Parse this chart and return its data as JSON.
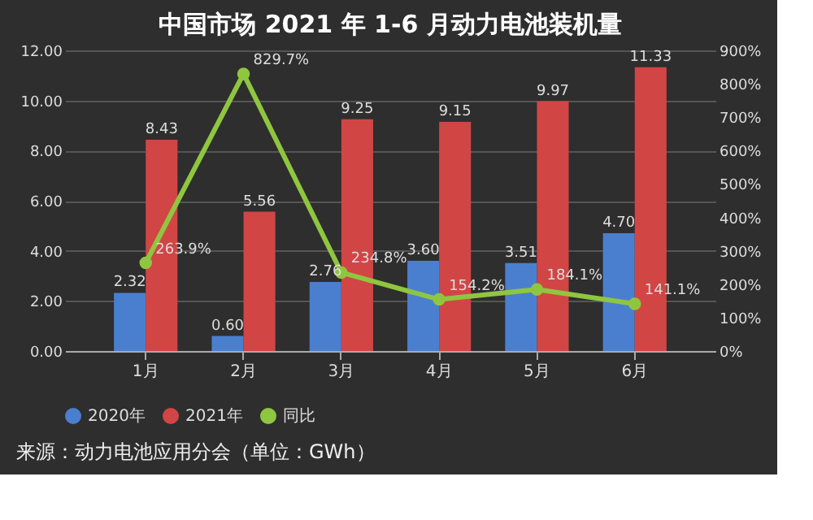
{
  "chart_data": {
    "type": "bar",
    "title": "中国市场 2021 年 1-6 月动力电池装机量",
    "categories": [
      "1月",
      "2月",
      "3月",
      "4月",
      "5月",
      "6月"
    ],
    "series": [
      {
        "name": "2020年",
        "color": "#4a7fcf",
        "values": [
          2.32,
          0.6,
          2.76,
          3.6,
          3.51,
          4.7
        ],
        "value_labels": [
          "2.32",
          "0.60",
          "2.76",
          "3.60",
          "3.51",
          "4.70"
        ]
      },
      {
        "name": "2021年",
        "color": "#d24545",
        "values": [
          8.43,
          5.56,
          9.25,
          9.15,
          9.97,
          11.33
        ],
        "value_labels": [
          "8.43",
          "5.56",
          "9.25",
          "9.15",
          "9.97",
          "11.33"
        ]
      },
      {
        "name": "同比",
        "type": "line",
        "axis": "y2",
        "color": "#8fc640",
        "values": [
          263.9,
          829.7,
          234.8,
          154.2,
          184.1,
          141.1
        ],
        "value_labels": [
          "263.9%",
          "829.7%",
          "234.8%",
          "154.2%",
          "184.1%",
          "141.1%"
        ]
      }
    ],
    "ylim": [
      0,
      12
    ],
    "yticks": [
      {
        "value": 0,
        "label": "0.00"
      },
      {
        "value": 2,
        "label": "2.00"
      },
      {
        "value": 4,
        "label": "4.00"
      },
      {
        "value": 6,
        "label": "6.00"
      },
      {
        "value": 8,
        "label": "8.00"
      },
      {
        "value": 10,
        "label": "10.00"
      },
      {
        "value": 12,
        "label": "12.00"
      }
    ],
    "y2lim": [
      0,
      900
    ],
    "y2ticks": [
      {
        "value": 0,
        "label": "0%"
      },
      {
        "value": 100,
        "label": "100%"
      },
      {
        "value": 200,
        "label": "200%"
      },
      {
        "value": 300,
        "label": "300%"
      },
      {
        "value": 400,
        "label": "400%"
      },
      {
        "value": 500,
        "label": "500%"
      },
      {
        "value": 600,
        "label": "600%"
      },
      {
        "value": 700,
        "label": "700%"
      },
      {
        "value": 800,
        "label": "800%"
      },
      {
        "value": 900,
        "label": "900%"
      }
    ],
    "grid": "y",
    "legend": "bottom",
    "marker": "circle",
    "line_style": "solid",
    "annotations": [
      "来源：动力电池应用分会（单位：GWh）"
    ]
  }
}
